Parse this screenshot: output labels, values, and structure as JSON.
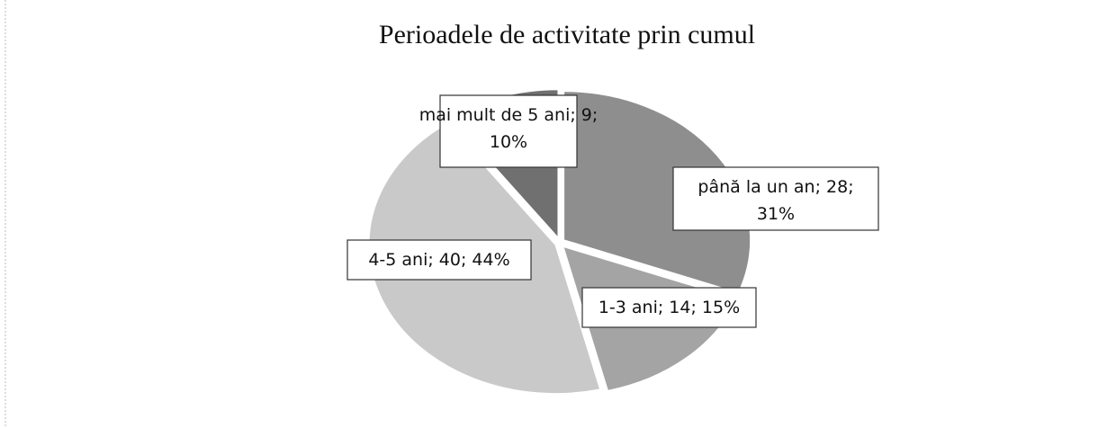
{
  "chart_data": {
    "type": "pie",
    "title": "Perioadele de activitate prin cumul",
    "categories": [
      "până la un an",
      "1-3 ani",
      "4-5 ani",
      "mai mult de 5 ani"
    ],
    "values": [
      28,
      14,
      40,
      9
    ],
    "value_labels": [
      "până la un an; 28; 31%",
      "1-3 ani; 14; 15%",
      "4-5 ani; 40; 44%",
      "mai mult de 5 ani; 9; 10%"
    ],
    "colors": [
      "#8e8e8e",
      "#a4a4a4",
      "#c9c9c9",
      "#707070"
    ]
  }
}
